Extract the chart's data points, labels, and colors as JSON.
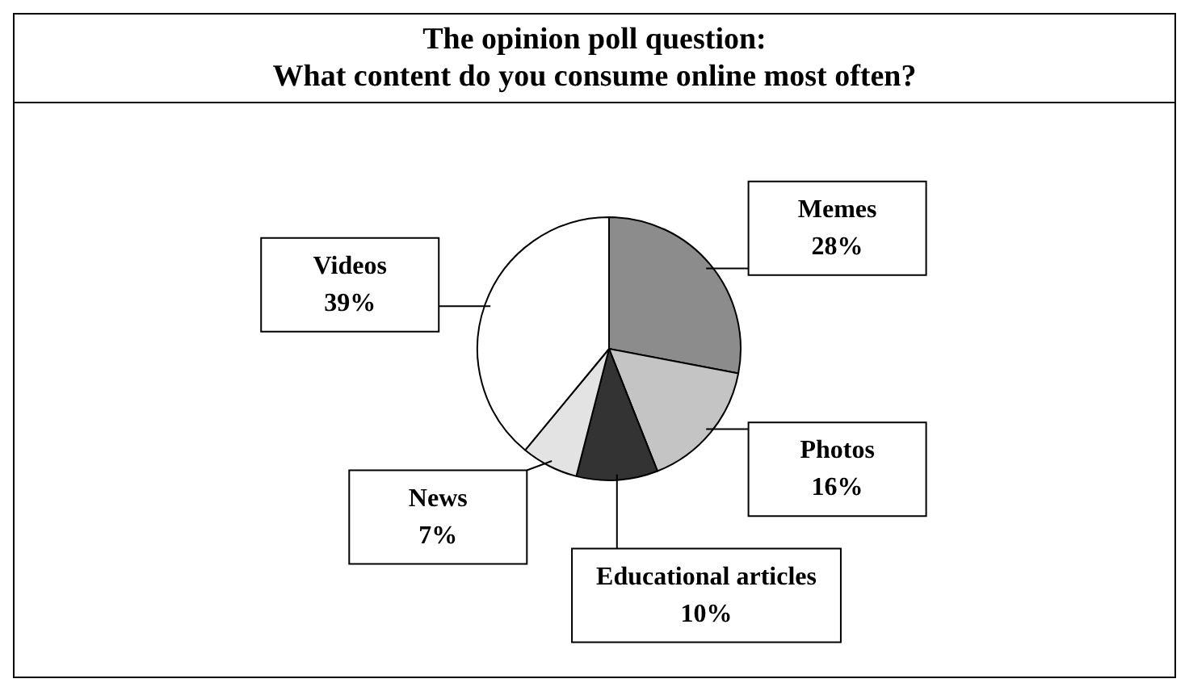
{
  "chart_data": {
    "type": "pie",
    "title": "The opinion poll question:\nWhat content do you consume online most often?",
    "categories": [
      "Memes",
      "Photos",
      "Educational articles",
      "News",
      "Videos"
    ],
    "values": [
      28,
      16,
      10,
      7,
      39
    ],
    "value_labels": [
      "28%",
      "16%",
      "10%",
      "7%",
      "39%"
    ],
    "colors": [
      "#8c8c8c",
      "#c4c4c4",
      "#333333",
      "#e3e3e3",
      "#ffffff"
    ]
  }
}
